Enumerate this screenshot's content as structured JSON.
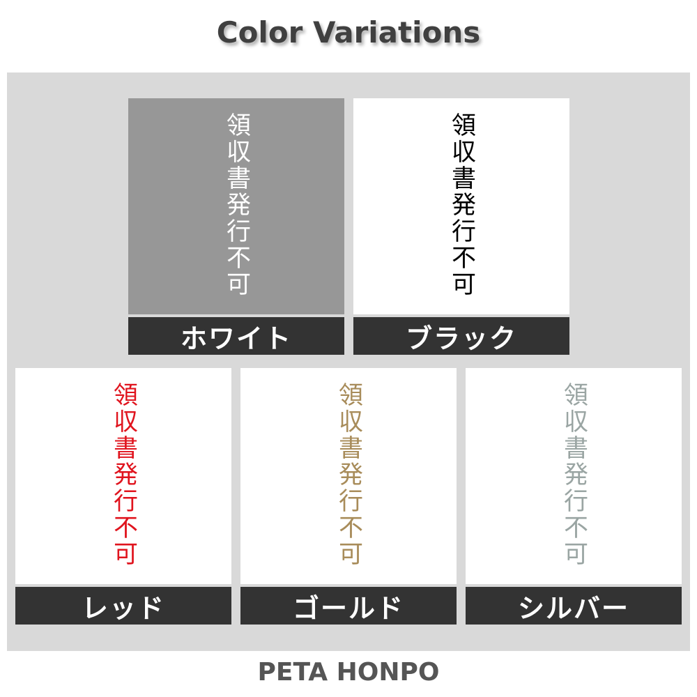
{
  "title": "Color Variations",
  "sign_text": "領収書発行不可",
  "variations": [
    {
      "label": "ホワイト",
      "background": "#979797",
      "text_color": "#ffffff"
    },
    {
      "label": "ブラック",
      "background": "#ffffff",
      "text_color": "#000000"
    },
    {
      "label": "レッド",
      "background": "#ffffff",
      "text_color": "#e0141e"
    },
    {
      "label": "ゴールド",
      "background": "#ffffff",
      "text_color": "#a88c5a"
    },
    {
      "label": "シルバー",
      "background": "#ffffff",
      "text_color": "#9aa5a3"
    }
  ],
  "footer": "PETA HONPO"
}
